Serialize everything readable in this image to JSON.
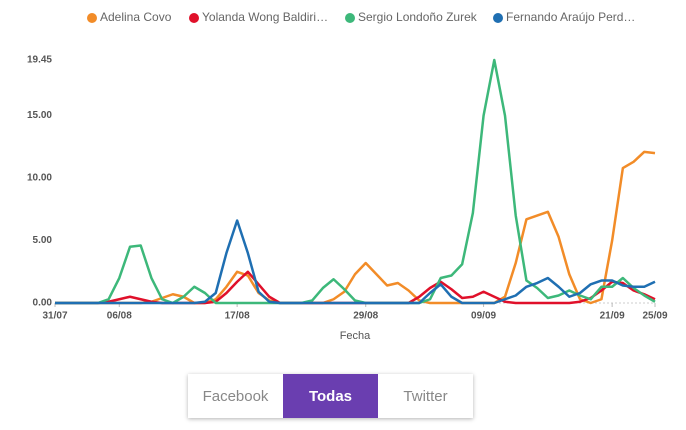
{
  "chart_data": {
    "type": "line",
    "x_label": "Fecha",
    "categories": [
      "31/07",
      null,
      null,
      null,
      null,
      null,
      "06/08",
      null,
      null,
      null,
      null,
      null,
      null,
      null,
      null,
      null,
      null,
      "17/08",
      null,
      null,
      null,
      null,
      null,
      null,
      null,
      null,
      null,
      null,
      null,
      "29/08",
      null,
      null,
      null,
      null,
      null,
      null,
      null,
      null,
      null,
      null,
      "09/09",
      null,
      null,
      null,
      null,
      null,
      null,
      null,
      null,
      null,
      null,
      null,
      "21/09",
      null,
      null,
      null,
      "25/09"
    ],
    "series": [
      {
        "name": "Adelina Covo",
        "color": "#f28c28",
        "values": [
          0,
          0,
          0,
          0,
          0,
          0,
          0,
          0,
          0,
          0.1,
          0.4,
          0.7,
          0.5,
          0,
          0,
          0.3,
          1.3,
          2.5,
          2.2,
          0.8,
          0.2,
          0,
          0,
          0,
          0,
          0,
          0.3,
          0.9,
          2.3,
          3.2,
          2.3,
          1.4,
          1.6,
          1.0,
          0.2,
          0,
          0,
          0,
          0,
          0,
          0,
          0,
          0.5,
          3.2,
          6.7,
          7.0,
          7.3,
          5.3,
          2.3,
          0.3,
          0,
          0.3,
          5.0,
          10.8,
          11.3,
          12.1,
          12.0
        ]
      },
      {
        "name": "Yolanda Wong Baldiri…",
        "color": "#e0102a",
        "values": [
          0,
          0,
          0,
          0,
          0,
          0.1,
          0.3,
          0.5,
          0.3,
          0.1,
          0,
          0,
          0,
          0,
          0,
          0.1,
          0.8,
          1.7,
          2.5,
          1.5,
          0.5,
          0,
          0,
          0,
          0,
          0,
          0,
          0,
          0,
          0,
          0,
          0,
          0,
          0,
          0.5,
          1.2,
          1.7,
          1.1,
          0.4,
          0.5,
          0.9,
          0.5,
          0.1,
          0,
          0,
          0,
          0,
          0,
          0,
          0.1,
          0.4,
          1.0,
          1.7,
          1.6,
          1.0,
          0.7,
          0.3
        ]
      },
      {
        "name": "Sergio Londoño Zurek",
        "color": "#3db87a",
        "values": [
          0,
          0,
          0,
          0,
          0,
          0.3,
          2.0,
          4.5,
          4.6,
          2.0,
          0.3,
          0,
          0.5,
          1.3,
          0.8,
          0,
          0,
          0,
          0,
          0,
          0,
          0,
          0,
          0,
          0.2,
          1.2,
          1.9,
          1.1,
          0.2,
          0,
          0,
          0,
          0,
          0,
          0,
          0.3,
          2.0,
          2.2,
          3.1,
          7.2,
          15.0,
          19.45,
          15.0,
          7.0,
          1.8,
          1.2,
          0.4,
          0.6,
          1.0,
          0.6,
          0.3,
          1.3,
          1.3,
          2.0,
          1.2,
          0.6,
          0.1
        ]
      },
      {
        "name": "Fernando Araújo Perd…",
        "color": "#1f6fb2",
        "values": [
          0,
          0,
          0,
          0,
          0,
          0,
          0,
          0,
          0,
          0,
          0,
          0,
          0,
          0,
          0.1,
          0.8,
          4.0,
          6.6,
          4.0,
          0.9,
          0.1,
          0,
          0,
          0,
          0,
          0,
          0,
          0,
          0,
          0,
          0,
          0,
          0,
          0,
          0,
          0.8,
          1.5,
          0.5,
          0,
          0,
          0,
          0,
          0.3,
          0.6,
          1.3,
          1.6,
          2.0,
          1.3,
          0.5,
          0.8,
          1.5,
          1.8,
          1.8,
          1.4,
          1.3,
          1.3,
          1.7
        ]
      }
    ],
    "ylim": [
      0,
      19.45
    ],
    "yticks": [
      {
        "value": 0,
        "label": "0.00"
      },
      {
        "value": 5,
        "label": "5.00"
      },
      {
        "value": 10,
        "label": "10.00"
      },
      {
        "value": 15,
        "label": "15.00"
      },
      {
        "value": 19.45,
        "label": "19.45"
      }
    ],
    "legend": "top"
  },
  "buttons": [
    "Facebook",
    "Todas",
    "Twitter"
  ],
  "active_button": 1
}
